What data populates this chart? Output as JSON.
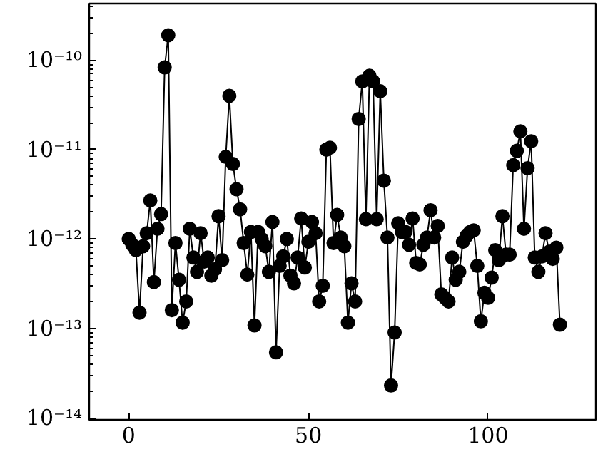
{
  "chart_data": {
    "type": "line",
    "marker": "circle",
    "log": "y",
    "grid": false,
    "xlim": [
      -11,
      130
    ],
    "ylim": [
      9.5e-15,
      4.3e-10
    ],
    "xticks": [
      0,
      50,
      100
    ],
    "yticks": [
      {
        "value": 1e-14,
        "label": "10⁻¹⁴"
      },
      {
        "value": 1e-13,
        "label": "10⁻¹³"
      },
      {
        "value": 1e-12,
        "label": "10⁻¹²"
      },
      {
        "value": 1e-11,
        "label": "10⁻¹¹"
      },
      {
        "value": 1e-10,
        "label": "10⁻¹⁰"
      }
    ],
    "series": [
      {
        "color": "#000000",
        "x": [
          0,
          1,
          2,
          3,
          4,
          5,
          6,
          7,
          8,
          9,
          10,
          11,
          12,
          13,
          14,
          15,
          16,
          17,
          18,
          19,
          20,
          21,
          22,
          23,
          24,
          25,
          26,
          27,
          28,
          29,
          30,
          31,
          32,
          33,
          34,
          35,
          36,
          37,
          38,
          39,
          40,
          41,
          42,
          43,
          44,
          45,
          46,
          47,
          48,
          49,
          50,
          51,
          52,
          53,
          54,
          55,
          56,
          57,
          58,
          59,
          60,
          61,
          62,
          63,
          64,
          65,
          66,
          67,
          68,
          69,
          70,
          71,
          72,
          73,
          74,
          75,
          76,
          77,
          78,
          79,
          80,
          81,
          82,
          83,
          84,
          85,
          86,
          87,
          88,
          89,
          90,
          91,
          92,
          93,
          94,
          95,
          96,
          97,
          98,
          99,
          100,
          101,
          102,
          103,
          104,
          105,
          106,
          107,
          108,
          109,
          110,
          111,
          112,
          113,
          114,
          115,
          116,
          117,
          118,
          119,
          120
        ],
        "values": [
          1e-12,
          8.6e-13,
          7.5e-13,
          1.5e-13,
          8.3e-13,
          1.16e-12,
          2.7e-12,
          3.3e-13,
          1.3e-12,
          1.9e-12,
          8.3e-11,
          1.9e-10,
          1.6e-13,
          9e-13,
          3.5e-13,
          1.16e-13,
          2e-13,
          1.3e-12,
          6.2e-13,
          4.3e-13,
          1.16e-12,
          5.6e-13,
          6.2e-13,
          3.9e-13,
          4.6e-13,
          1.8e-12,
          5.8e-13,
          8.3e-12,
          4e-11,
          6.9e-12,
          3.6e-12,
          2.15e-12,
          9e-13,
          4e-13,
          1.2e-12,
          1.08e-13,
          1.2e-12,
          1e-12,
          8.3e-13,
          4.3e-13,
          1.55e-12,
          5.4e-14,
          5e-13,
          6.4e-13,
          1e-12,
          3.9e-13,
          3.2e-13,
          6.2e-13,
          1.7e-12,
          4.8e-13,
          9.3e-13,
          1.55e-12,
          1.16e-12,
          2e-13,
          3e-13,
          1e-11,
          1.05e-11,
          9e-13,
          1.86e-12,
          1.04e-12,
          8.3e-13,
          1.16e-13,
          3.2e-13,
          2e-13,
          2.2e-11,
          5.8e-11,
          1.67e-12,
          6.7e-11,
          5.8e-11,
          1.67e-12,
          4.5e-11,
          4.5e-12,
          1.04e-12,
          2.3e-14,
          9e-14,
          1.5e-12,
          1.2e-12,
          1.2e-12,
          8.6e-13,
          1.7e-12,
          5.4e-13,
          5.2e-13,
          8.6e-13,
          1.04e-12,
          2.1e-12,
          1.04e-12,
          1.4e-12,
          2.4e-13,
          2.2e-13,
          2e-13,
          6.2e-13,
          3.5e-13,
          4.3e-13,
          9.3e-13,
          1.08e-12,
          1.2e-12,
          1.25e-12,
          5e-13,
          1.2e-13,
          2.5e-13,
          2.2e-13,
          3.7e-13,
          7.5e-13,
          5.8e-13,
          1.8e-12,
          6.7e-13,
          6.7e-13,
          6.7e-12,
          9.7e-12,
          1.6e-11,
          1.3e-12,
          6.2e-12,
          1.24e-11,
          6.2e-13,
          4.3e-13,
          6.4e-13,
          1.16e-12,
          7.2e-13,
          6e-13,
          8e-13,
          1.1e-13
        ]
      }
    ]
  }
}
